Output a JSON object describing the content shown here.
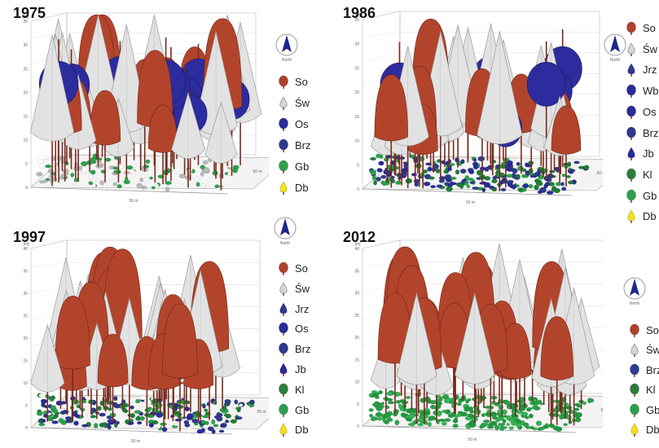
{
  "panels": [
    {
      "key": "p1975",
      "year": "1975",
      "legend": [
        {
          "label": "So",
          "color": "#b0402a",
          "shape": "round"
        },
        {
          "label": "Św",
          "color": "#d6d6d6",
          "shape": "drop"
        },
        {
          "label": "Os",
          "color": "#2a2a9a",
          "shape": "round"
        },
        {
          "label": "Brz",
          "color": "#2e3a8c",
          "shape": "round"
        },
        {
          "label": "Gb",
          "color": "#2aa14a",
          "shape": "round"
        },
        {
          "label": "Db",
          "color": "#f2e21a",
          "shape": "drop"
        }
      ],
      "north_label": "North",
      "y_axis_label": "[m]",
      "y_ticks": [
        "0",
        "5",
        "10",
        "15",
        "20",
        "25",
        "30",
        "35"
      ],
      "x_axis_label": "50 m",
      "depth_axis_label": "50 m"
    },
    {
      "key": "p1986",
      "year": "1986",
      "legend": [
        {
          "label": "So",
          "color": "#b0402a",
          "shape": "round"
        },
        {
          "label": "Św",
          "color": "#d6d6d6",
          "shape": "drop"
        },
        {
          "label": "Jrz",
          "color": "#2e3a8c",
          "shape": "drop"
        },
        {
          "label": "Wb",
          "color": "#2a2a9a",
          "shape": "round"
        },
        {
          "label": "Os",
          "color": "#2a2a9a",
          "shape": "round"
        },
        {
          "label": "Brz",
          "color": "#2e3a8c",
          "shape": "round"
        },
        {
          "label": "Jb",
          "color": "#2a2a9a",
          "shape": "drop"
        },
        {
          "label": "Kl",
          "color": "#2d7d3a",
          "shape": "round"
        },
        {
          "label": "Gb",
          "color": "#2aa14a",
          "shape": "round"
        },
        {
          "label": "Db",
          "color": "#f2e21a",
          "shape": "drop"
        }
      ],
      "north_label": "North",
      "y_axis_label": "[m]",
      "y_ticks": [
        "0",
        "5",
        "10",
        "15",
        "20",
        "25",
        "30",
        "35"
      ],
      "x_axis_label": "50 m",
      "depth_axis_label": "50 m"
    },
    {
      "key": "p1997",
      "year": "1997",
      "legend": [
        {
          "label": "So",
          "color": "#b0402a",
          "shape": "round"
        },
        {
          "label": "Św",
          "color": "#d6d6d6",
          "shape": "drop"
        },
        {
          "label": "Jrz",
          "color": "#2e3a8c",
          "shape": "drop"
        },
        {
          "label": "Os",
          "color": "#2a2a9a",
          "shape": "round"
        },
        {
          "label": "Brz",
          "color": "#2e3a8c",
          "shape": "round"
        },
        {
          "label": "Jb",
          "color": "#2a2a9a",
          "shape": "drop"
        },
        {
          "label": "Kl",
          "color": "#2d7d3a",
          "shape": "round"
        },
        {
          "label": "Gb",
          "color": "#2aa14a",
          "shape": "round"
        },
        {
          "label": "Db",
          "color": "#f2e21a",
          "shape": "drop"
        }
      ],
      "north_label": "North",
      "y_axis_label": "[m]",
      "y_ticks": [
        "0",
        "5",
        "10",
        "15",
        "20",
        "25",
        "30",
        "35",
        "40"
      ],
      "x_axis_label": "50 m",
      "depth_axis_label": "50 m"
    },
    {
      "key": "p2012",
      "year": "2012",
      "legend": [
        {
          "label": "So",
          "color": "#b0402a",
          "shape": "round"
        },
        {
          "label": "Św",
          "color": "#d6d6d6",
          "shape": "drop"
        },
        {
          "label": "Brz",
          "color": "#2e3a8c",
          "shape": "round"
        },
        {
          "label": "Kl",
          "color": "#2d7d3a",
          "shape": "round"
        },
        {
          "label": "Gb",
          "color": "#2aa14a",
          "shape": "round"
        },
        {
          "label": "Db",
          "color": "#f2e21a",
          "shape": "drop"
        }
      ],
      "north_label": "North",
      "y_axis_label": "[m]",
      "y_ticks": [
        "0",
        "5",
        "10",
        "15",
        "20",
        "25",
        "30",
        "35",
        "40"
      ],
      "x_axis_label": "50 m",
      "depth_axis_label": "50 m"
    }
  ]
}
